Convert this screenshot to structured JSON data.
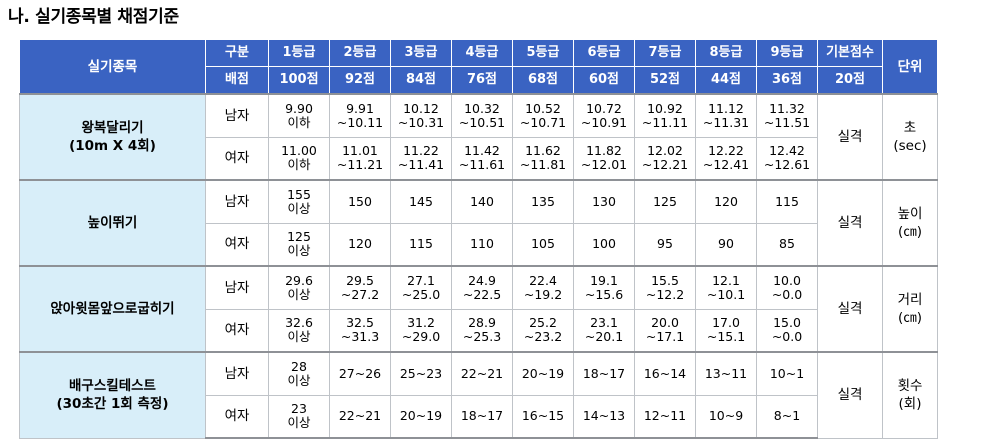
{
  "title": "나. 실기종목별 채점기준",
  "header": {
    "event": "실기종목",
    "row1_label": "구분",
    "row2_label": "배점",
    "grades": [
      "1등급",
      "2등급",
      "3등급",
      "4등급",
      "5등급",
      "6등급",
      "7등급",
      "8등급",
      "9등급"
    ],
    "points": [
      "100점",
      "92점",
      "84점",
      "76점",
      "68점",
      "60점",
      "52점",
      "44점",
      "36점"
    ],
    "base_label": "기본점수",
    "base_points": "20점",
    "unit": "단위"
  },
  "events": [
    {
      "name": [
        "왕복달리기",
        "(10m X 4회)"
      ],
      "base": "실격",
      "unit": [
        "초",
        "(sec)"
      ],
      "rows": [
        {
          "sex": "남자",
          "values": [
            [
              "9.90",
              "이하"
            ],
            [
              "9.91",
              "~10.11"
            ],
            [
              "10.12",
              "~10.31"
            ],
            [
              "10.32",
              "~10.51"
            ],
            [
              "10.52",
              "~10.71"
            ],
            [
              "10.72",
              "~10.91"
            ],
            [
              "10.92",
              "~11.11"
            ],
            [
              "11.12",
              "~11.31"
            ],
            [
              "11.32",
              "~11.51"
            ]
          ]
        },
        {
          "sex": "여자",
          "values": [
            [
              "11.00",
              "이하"
            ],
            [
              "11.01",
              "~11.21"
            ],
            [
              "11.22",
              "~11.41"
            ],
            [
              "11.42",
              "~11.61"
            ],
            [
              "11.62",
              "~11.81"
            ],
            [
              "11.82",
              "~12.01"
            ],
            [
              "12.02",
              "~12.21"
            ],
            [
              "12.22",
              "~12.41"
            ],
            [
              "12.42",
              "~12.61"
            ]
          ]
        }
      ]
    },
    {
      "name": [
        "높이뛰기"
      ],
      "base": "실격",
      "unit": [
        "높이",
        "(㎝)"
      ],
      "rows": [
        {
          "sex": "남자",
          "values": [
            [
              "155",
              "이상"
            ],
            [
              "150"
            ],
            [
              "145"
            ],
            [
              "140"
            ],
            [
              "135"
            ],
            [
              "130"
            ],
            [
              "125"
            ],
            [
              "120"
            ],
            [
              "115"
            ]
          ]
        },
        {
          "sex": "여자",
          "values": [
            [
              "125",
              "이상"
            ],
            [
              "120"
            ],
            [
              "115"
            ],
            [
              "110"
            ],
            [
              "105"
            ],
            [
              "100"
            ],
            [
              "95"
            ],
            [
              "90"
            ],
            [
              "85"
            ]
          ]
        }
      ]
    },
    {
      "name": [
        "앉아윗몸앞으로굽히기"
      ],
      "base": "실격",
      "unit": [
        "거리",
        "(㎝)"
      ],
      "rows": [
        {
          "sex": "남자",
          "values": [
            [
              "29.6",
              "이상"
            ],
            [
              "29.5",
              "~27.2"
            ],
            [
              "27.1",
              "~25.0"
            ],
            [
              "24.9",
              "~22.5"
            ],
            [
              "22.4",
              "~19.2"
            ],
            [
              "19.1",
              "~15.6"
            ],
            [
              "15.5",
              "~12.2"
            ],
            [
              "12.1",
              "~10.1"
            ],
            [
              "10.0",
              "~0.0"
            ]
          ]
        },
        {
          "sex": "여자",
          "values": [
            [
              "32.6",
              "이상"
            ],
            [
              "32.5",
              "~31.3"
            ],
            [
              "31.2",
              "~29.0"
            ],
            [
              "28.9",
              "~25.3"
            ],
            [
              "25.2",
              "~23.2"
            ],
            [
              "23.1",
              "~20.1"
            ],
            [
              "20.0",
              "~17.1"
            ],
            [
              "17.0",
              "~15.1"
            ],
            [
              "15.0",
              "~0.0"
            ]
          ]
        }
      ]
    },
    {
      "name": [
        "배구스킬테스트",
        "(30초간 1회 측정)"
      ],
      "base": "실격",
      "unit": [
        "횟수",
        "(회)"
      ],
      "rows": [
        {
          "sex": "남자",
          "values": [
            [
              "28",
              "이상"
            ],
            [
              "27~26"
            ],
            [
              "25~23"
            ],
            [
              "22~21"
            ],
            [
              "20~19"
            ],
            [
              "18~17"
            ],
            [
              "16~14"
            ],
            [
              "13~11"
            ],
            [
              "10~1"
            ]
          ]
        },
        {
          "sex": "여자",
          "values": [
            [
              "23",
              "이상"
            ],
            [
              "22~21"
            ],
            [
              "20~19"
            ],
            [
              "18~17"
            ],
            [
              "16~15"
            ],
            [
              "14~13"
            ],
            [
              "12~11"
            ],
            [
              "10~9"
            ],
            [
              "8~1"
            ]
          ]
        }
      ]
    }
  ]
}
